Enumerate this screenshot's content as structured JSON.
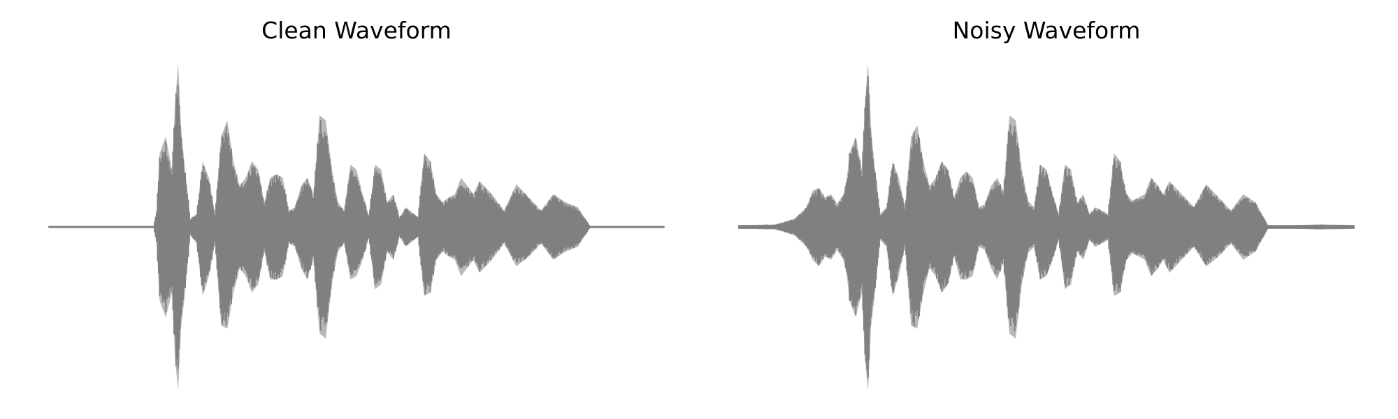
{
  "chart_data": [
    {
      "type": "line",
      "title": "Clean Waveform",
      "axes_visible": false,
      "grid": false,
      "color": "#808080",
      "ylim": [
        -1.0,
        1.0
      ],
      "xlim": [
        0,
        1
      ],
      "envelope": {
        "x": [
          0.0,
          0.1,
          0.17,
          0.175,
          0.18,
          0.19,
          0.2,
          0.205,
          0.21,
          0.215,
          0.22,
          0.23,
          0.24,
          0.25,
          0.26,
          0.27,
          0.28,
          0.29,
          0.3,
          0.31,
          0.32,
          0.33,
          0.34,
          0.35,
          0.36,
          0.37,
          0.38,
          0.39,
          0.4,
          0.41,
          0.42,
          0.43,
          0.44,
          0.45,
          0.46,
          0.47,
          0.48,
          0.49,
          0.5,
          0.51,
          0.52,
          0.53,
          0.54,
          0.55,
          0.56,
          0.57,
          0.58,
          0.59,
          0.6,
          0.61,
          0.62,
          0.63,
          0.64,
          0.65,
          0.66,
          0.67,
          0.68,
          0.69,
          0.7,
          0.72,
          0.74,
          0.76,
          0.78,
          0.8,
          0.82,
          0.84,
          0.86,
          0.88,
          0.9,
          0.95,
          1.0
        ],
        "top": [
          0.005,
          0.005,
          0.006,
          0.1,
          0.45,
          0.55,
          0.35,
          0.75,
          1.0,
          0.6,
          0.4,
          0.05,
          0.08,
          0.4,
          0.3,
          0.08,
          0.55,
          0.65,
          0.4,
          0.25,
          0.3,
          0.4,
          0.35,
          0.15,
          0.3,
          0.32,
          0.3,
          0.1,
          0.12,
          0.25,
          0.3,
          0.2,
          0.68,
          0.65,
          0.35,
          0.15,
          0.1,
          0.38,
          0.35,
          0.2,
          0.07,
          0.38,
          0.35,
          0.15,
          0.2,
          0.06,
          0.12,
          0.09,
          0.06,
          0.45,
          0.4,
          0.2,
          0.15,
          0.18,
          0.2,
          0.3,
          0.25,
          0.2,
          0.28,
          0.2,
          0.1,
          0.26,
          0.18,
          0.1,
          0.2,
          0.15,
          0.12,
          0.005,
          0.005,
          0.005,
          0.005
        ],
        "bottom": [
          -0.005,
          -0.005,
          -0.006,
          -0.1,
          -0.45,
          -0.55,
          -0.4,
          -0.8,
          -1.0,
          -0.6,
          -0.45,
          -0.05,
          -0.1,
          -0.42,
          -0.3,
          -0.1,
          -0.6,
          -0.62,
          -0.4,
          -0.25,
          -0.3,
          -0.4,
          -0.35,
          -0.15,
          -0.32,
          -0.32,
          -0.3,
          -0.1,
          -0.12,
          -0.25,
          -0.32,
          -0.2,
          -0.65,
          -0.68,
          -0.35,
          -0.15,
          -0.1,
          -0.32,
          -0.3,
          -0.2,
          -0.07,
          -0.38,
          -0.35,
          -0.15,
          -0.2,
          -0.06,
          -0.12,
          -0.09,
          -0.06,
          -0.42,
          -0.4,
          -0.2,
          -0.15,
          -0.18,
          -0.2,
          -0.3,
          -0.25,
          -0.2,
          -0.28,
          -0.2,
          -0.1,
          -0.24,
          -0.18,
          -0.1,
          -0.2,
          -0.15,
          -0.12,
          -0.005,
          -0.005,
          -0.005,
          -0.005
        ]
      }
    },
    {
      "type": "line",
      "title": "Noisy Waveform",
      "axes_visible": false,
      "grid": false,
      "color": "#808080",
      "ylim": [
        -1.0,
        1.0
      ],
      "xlim": [
        0,
        1
      ],
      "envelope": {
        "x": [
          0.0,
          0.06,
          0.09,
          0.11,
          0.12,
          0.13,
          0.14,
          0.15,
          0.16,
          0.17,
          0.175,
          0.18,
          0.19,
          0.2,
          0.205,
          0.21,
          0.215,
          0.22,
          0.23,
          0.24,
          0.25,
          0.26,
          0.27,
          0.28,
          0.29,
          0.3,
          0.31,
          0.32,
          0.33,
          0.34,
          0.35,
          0.36,
          0.37,
          0.38,
          0.39,
          0.4,
          0.41,
          0.42,
          0.43,
          0.44,
          0.45,
          0.46,
          0.47,
          0.48,
          0.49,
          0.5,
          0.51,
          0.52,
          0.53,
          0.54,
          0.55,
          0.56,
          0.57,
          0.58,
          0.59,
          0.6,
          0.61,
          0.62,
          0.63,
          0.64,
          0.65,
          0.66,
          0.67,
          0.68,
          0.69,
          0.7,
          0.72,
          0.74,
          0.76,
          0.78,
          0.8,
          0.82,
          0.84,
          0.86,
          0.88,
          0.9,
          0.95,
          1.0
        ],
        "top": [
          0.012,
          0.015,
          0.05,
          0.12,
          0.22,
          0.24,
          0.18,
          0.2,
          0.14,
          0.2,
          0.28,
          0.45,
          0.55,
          0.35,
          0.75,
          1.0,
          0.6,
          0.4,
          0.08,
          0.12,
          0.4,
          0.3,
          0.12,
          0.55,
          0.62,
          0.4,
          0.25,
          0.3,
          0.4,
          0.35,
          0.18,
          0.3,
          0.34,
          0.3,
          0.12,
          0.14,
          0.25,
          0.3,
          0.22,
          0.68,
          0.65,
          0.35,
          0.16,
          0.12,
          0.38,
          0.35,
          0.2,
          0.08,
          0.38,
          0.35,
          0.15,
          0.2,
          0.08,
          0.12,
          0.1,
          0.08,
          0.45,
          0.4,
          0.2,
          0.16,
          0.18,
          0.2,
          0.3,
          0.26,
          0.2,
          0.28,
          0.2,
          0.12,
          0.26,
          0.18,
          0.1,
          0.2,
          0.15,
          0.012,
          0.012,
          0.012,
          0.015,
          0.012
        ],
        "bottom": [
          -0.012,
          -0.015,
          -0.05,
          -0.12,
          -0.2,
          -0.24,
          -0.18,
          -0.2,
          -0.14,
          -0.2,
          -0.28,
          -0.45,
          -0.55,
          -0.4,
          -0.8,
          -1.0,
          -0.6,
          -0.45,
          -0.08,
          -0.12,
          -0.42,
          -0.3,
          -0.12,
          -0.6,
          -0.62,
          -0.4,
          -0.25,
          -0.3,
          -0.4,
          -0.35,
          -0.18,
          -0.32,
          -0.32,
          -0.3,
          -0.12,
          -0.14,
          -0.25,
          -0.32,
          -0.22,
          -0.65,
          -0.68,
          -0.35,
          -0.16,
          -0.12,
          -0.32,
          -0.3,
          -0.2,
          -0.08,
          -0.38,
          -0.35,
          -0.15,
          -0.2,
          -0.08,
          -0.12,
          -0.1,
          -0.08,
          -0.42,
          -0.4,
          -0.2,
          -0.16,
          -0.18,
          -0.2,
          -0.3,
          -0.26,
          -0.2,
          -0.28,
          -0.2,
          -0.12,
          -0.24,
          -0.18,
          -0.1,
          -0.2,
          -0.15,
          -0.012,
          -0.012,
          -0.012,
          -0.015,
          -0.012
        ]
      }
    }
  ]
}
